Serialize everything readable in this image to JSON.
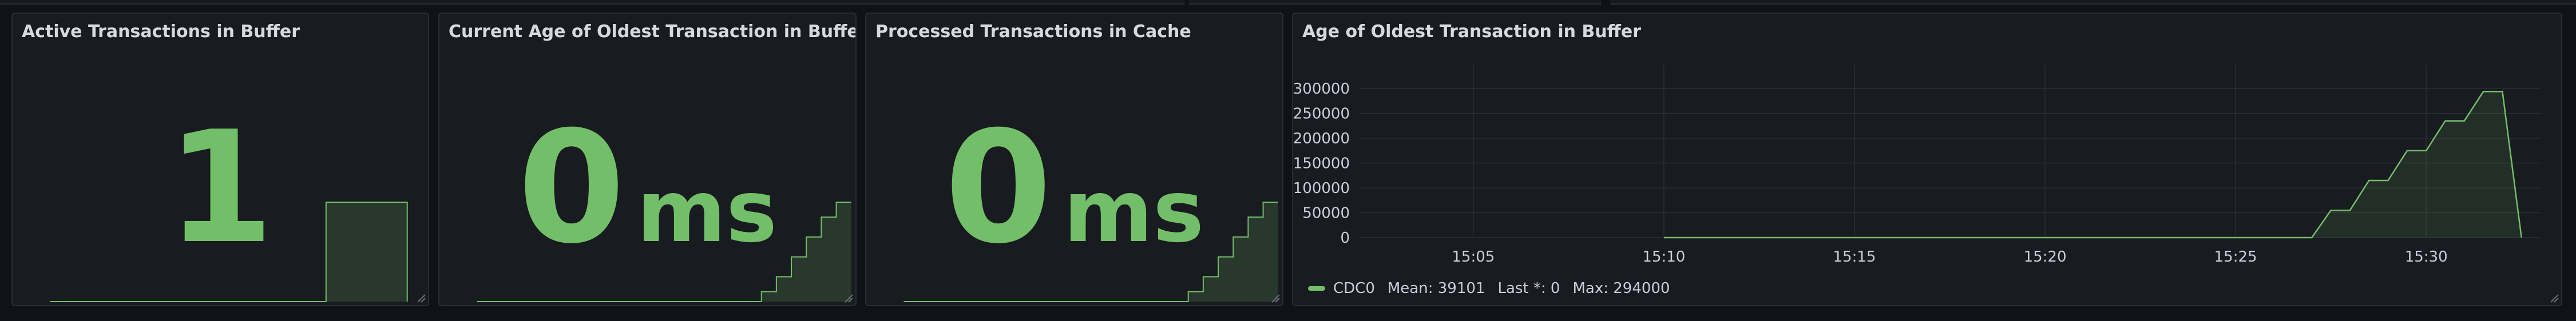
{
  "accent": "#73bf69",
  "panels": {
    "active": {
      "title": "Active Transactions in Buffer",
      "value": "1",
      "unit": ""
    },
    "age": {
      "title": "Current Age of Oldest Transaction in Buffer",
      "value": "0",
      "unit": "ms"
    },
    "processed": {
      "title": "Processed Transactions in Cache",
      "value": "0",
      "unit": "ms"
    },
    "timeseries": {
      "title": "Age of Oldest Transaction in Buffer",
      "legend": {
        "series": "CDC0",
        "mean": "Mean: 39101",
        "last": "Last *: 0",
        "max": "Max: 294000"
      }
    }
  },
  "sparklines": {
    "active": [
      0,
      0,
      0,
      0,
      0,
      0,
      0,
      0,
      0,
      0,
      0,
      0,
      0,
      0,
      0,
      0,
      0,
      1,
      1,
      1,
      1,
      1,
      0
    ],
    "age": [
      0,
      0,
      0,
      0,
      0,
      0,
      0,
      0,
      0,
      0,
      0,
      0,
      0,
      0,
      0,
      0,
      0,
      0,
      0,
      0.1,
      0.25,
      0.45,
      0.65,
      0.85,
      1,
      1
    ],
    "processed": [
      0,
      0,
      0,
      0,
      0,
      0,
      0,
      0,
      0,
      0,
      0,
      0,
      0,
      0,
      0,
      0,
      0,
      0,
      0,
      0.1,
      0.25,
      0.45,
      0.65,
      0.85,
      1,
      1
    ]
  },
  "chart_data": {
    "type": "area",
    "title": "Age of Oldest Transaction in Buffer",
    "xlabel": "",
    "ylabel": "",
    "x_ticks": [
      "15:05",
      "15:10",
      "15:15",
      "15:20",
      "15:25",
      "15:30"
    ],
    "y_ticks": [
      0,
      50000,
      100000,
      150000,
      200000,
      250000,
      300000
    ],
    "ylim": [
      0,
      330000
    ],
    "x_range": [
      "15:02",
      "15:33"
    ],
    "grid": true,
    "legend_position": "bottom-left",
    "series": [
      {
        "name": "CDC0",
        "color": "#73bf69",
        "x": [
          "15:10",
          "15:27",
          "15:27.5",
          "15:28",
          "15:28.5",
          "15:29",
          "15:29.5",
          "15:30",
          "15:30.5",
          "15:31",
          "15:31.5",
          "15:32",
          "15:32.5"
        ],
        "values": [
          0,
          0,
          55000,
          55000,
          115000,
          115000,
          175000,
          175000,
          235000,
          235000,
          294000,
          294000,
          0
        ]
      }
    ]
  }
}
